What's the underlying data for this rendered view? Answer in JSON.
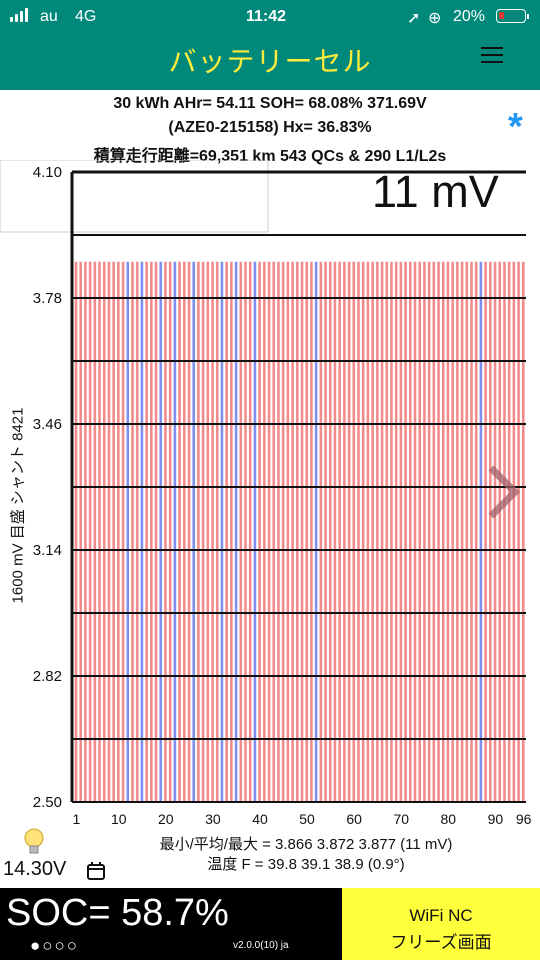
{
  "status_bar": {
    "carrier": "au",
    "network": "4G",
    "time": "11:42",
    "battery_percent": "20%",
    "icons": [
      "signal-icon",
      "location-arrow-icon",
      "orientation-lock-icon",
      "battery-icon"
    ]
  },
  "app_bar": {
    "title": "バッテリーセル",
    "menu_icon": "hamburger-icon",
    "color": "#00897b",
    "title_color": "#ffeb3b"
  },
  "header": {
    "line1": "30 kWh  AHr= 54.11 SOH= 68.08% 371.69V",
    "line2": "(AZE0-215158)    Hx= 36.83%",
    "line3": "積算走行距離=69,351 km 543 QCs & 290 L1/L2s",
    "star": "*"
  },
  "chart_data": {
    "type": "bar",
    "cell_count": 96,
    "ylim": [
      2.5,
      4.1
    ],
    "yticks": [
      "4.10",
      "3.78",
      "3.46",
      "3.14",
      "2.82",
      "2.50"
    ],
    "xticks": [
      "1",
      "10",
      "20",
      "30",
      "40",
      "50",
      "60",
      "70",
      "80",
      "90",
      "96"
    ],
    "ylabel": "1600 mV 目盛   シャント 8421",
    "spread_label": "11 mV",
    "min": 3.866,
    "avg": 3.872,
    "max": 3.877,
    "shunt_cells": [
      12,
      15,
      19,
      22,
      26,
      32,
      35,
      39,
      52,
      87
    ],
    "bar_color": "#f28b8b",
    "shunt_color": "#7f8ff0"
  },
  "stats": {
    "line1": "最小/平均/最大 = 3.866 3.872 3.877  (11 mV)",
    "line2": "温度 F = 39.8  39.1  38.9  (0.9°)"
  },
  "footer": {
    "voltage": "14.30V",
    "soc": "SOC= 58.7%",
    "dots": "●○○○",
    "version": "v2.0.0(10) ja",
    "wifi_line1": "WiFi NC",
    "wifi_line2": "フリーズ画面"
  }
}
